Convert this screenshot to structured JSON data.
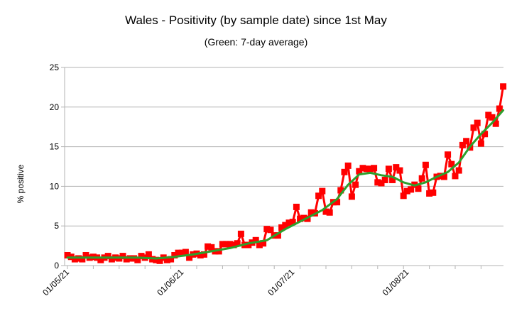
{
  "chart_data": {
    "type": "line",
    "title": "Wales - Positivity (by sample date) since 1st May",
    "subtitle": "(Green: 7-day average)",
    "xlabel": "",
    "ylabel": "% positive",
    "ylim": [
      0,
      25
    ],
    "yticks": [
      0,
      5,
      10,
      15,
      20,
      25
    ],
    "x_start": "2021-05-01",
    "x_end": "2021-08-31",
    "xticks": [
      {
        "label": "01/05/21",
        "date": "2021-05-01"
      },
      {
        "label": "01/06/21",
        "date": "2021-06-01"
      },
      {
        "label": "01/07/21",
        "date": "2021-07-01"
      },
      {
        "label": "01/08/21",
        "date": "2021-08-01"
      }
    ],
    "grid": "horizontal",
    "legend": "none",
    "series": [
      {
        "color": "#ff0000",
        "marker": "square",
        "points": [
          [
            "2021-05-01",
            1.3
          ],
          [
            "2021-05-02",
            1.1
          ],
          [
            "2021-05-03",
            0.8
          ],
          [
            "2021-05-04",
            0.9
          ],
          [
            "2021-05-05",
            0.8
          ],
          [
            "2021-05-06",
            1.3
          ],
          [
            "2021-05-07",
            1.0
          ],
          [
            "2021-05-08",
            1.1
          ],
          [
            "2021-05-09",
            1.0
          ],
          [
            "2021-05-10",
            0.7
          ],
          [
            "2021-05-11",
            1.0
          ],
          [
            "2021-05-12",
            1.2
          ],
          [
            "2021-05-13",
            0.8
          ],
          [
            "2021-05-14",
            1.0
          ],
          [
            "2021-05-15",
            0.9
          ],
          [
            "2021-05-16",
            1.2
          ],
          [
            "2021-05-17",
            0.8
          ],
          [
            "2021-05-18",
            0.9
          ],
          [
            "2021-05-19",
            0.9
          ],
          [
            "2021-05-20",
            0.7
          ],
          [
            "2021-05-21",
            1.2
          ],
          [
            "2021-05-22",
            1.0
          ],
          [
            "2021-05-23",
            1.4
          ],
          [
            "2021-05-24",
            0.8
          ],
          [
            "2021-05-25",
            0.7
          ],
          [
            "2021-05-26",
            0.6
          ],
          [
            "2021-05-27",
            1.0
          ],
          [
            "2021-05-28",
            0.7
          ],
          [
            "2021-05-29",
            0.8
          ],
          [
            "2021-05-30",
            1.3
          ],
          [
            "2021-05-31",
            1.6
          ],
          [
            "2021-06-01",
            1.6
          ],
          [
            "2021-06-02",
            1.7
          ],
          [
            "2021-06-03",
            1.0
          ],
          [
            "2021-06-04",
            1.4
          ],
          [
            "2021-06-05",
            1.5
          ],
          [
            "2021-06-06",
            1.3
          ],
          [
            "2021-06-07",
            1.4
          ],
          [
            "2021-06-08",
            2.4
          ],
          [
            "2021-06-09",
            2.3
          ],
          [
            "2021-06-10",
            1.8
          ],
          [
            "2021-06-11",
            1.8
          ],
          [
            "2021-06-12",
            2.7
          ],
          [
            "2021-06-13",
            2.7
          ],
          [
            "2021-06-14",
            2.7
          ],
          [
            "2021-06-15",
            2.6
          ],
          [
            "2021-06-16",
            2.8
          ],
          [
            "2021-06-17",
            4.0
          ],
          [
            "2021-06-18",
            2.6
          ],
          [
            "2021-06-19",
            2.6
          ],
          [
            "2021-06-20",
            2.9
          ],
          [
            "2021-06-21",
            3.2
          ],
          [
            "2021-06-22",
            2.6
          ],
          [
            "2021-06-23",
            2.8
          ],
          [
            "2021-06-24",
            4.6
          ],
          [
            "2021-06-25",
            4.5
          ],
          [
            "2021-06-26",
            3.8
          ],
          [
            "2021-06-27",
            3.8
          ],
          [
            "2021-06-28",
            4.8
          ],
          [
            "2021-06-29",
            5.1
          ],
          [
            "2021-06-30",
            5.4
          ],
          [
            "2021-07-01",
            5.5
          ],
          [
            "2021-07-02",
            7.4
          ],
          [
            "2021-07-03",
            5.9
          ],
          [
            "2021-07-04",
            6.0
          ],
          [
            "2021-07-05",
            5.9
          ],
          [
            "2021-07-06",
            6.7
          ],
          [
            "2021-07-07",
            6.6
          ],
          [
            "2021-07-08",
            8.8
          ],
          [
            "2021-07-09",
            9.4
          ],
          [
            "2021-07-10",
            6.8
          ],
          [
            "2021-07-11",
            6.7
          ],
          [
            "2021-07-12",
            8.0
          ],
          [
            "2021-07-13",
            8.0
          ],
          [
            "2021-07-14",
            9.5
          ],
          [
            "2021-07-15",
            11.8
          ],
          [
            "2021-07-16",
            12.6
          ],
          [
            "2021-07-17",
            8.7
          ],
          [
            "2021-07-18",
            10.2
          ],
          [
            "2021-07-19",
            11.9
          ],
          [
            "2021-07-20",
            12.3
          ],
          [
            "2021-07-21",
            12.2
          ],
          [
            "2021-07-22",
            12.2
          ],
          [
            "2021-07-23",
            12.3
          ],
          [
            "2021-07-24",
            10.5
          ],
          [
            "2021-07-25",
            10.4
          ],
          [
            "2021-07-26",
            10.8
          ],
          [
            "2021-07-27",
            12.2
          ],
          [
            "2021-07-28",
            10.8
          ],
          [
            "2021-07-29",
            12.4
          ],
          [
            "2021-07-30",
            12.0
          ],
          [
            "2021-07-31",
            8.8
          ],
          [
            "2021-08-01",
            9.4
          ],
          [
            "2021-08-02",
            9.6
          ],
          [
            "2021-08-03",
            10.2
          ],
          [
            "2021-08-04",
            9.7
          ],
          [
            "2021-08-05",
            11.0
          ],
          [
            "2021-08-06",
            12.7
          ],
          [
            "2021-08-07",
            9.1
          ],
          [
            "2021-08-08",
            9.2
          ],
          [
            "2021-08-09",
            11.2
          ],
          [
            "2021-08-10",
            11.3
          ],
          [
            "2021-08-11",
            11.2
          ],
          [
            "2021-08-12",
            14.0
          ],
          [
            "2021-08-13",
            12.8
          ],
          [
            "2021-08-14",
            11.3
          ],
          [
            "2021-08-15",
            12.0
          ],
          [
            "2021-08-16",
            15.2
          ],
          [
            "2021-08-17",
            15.7
          ],
          [
            "2021-08-18",
            14.9
          ],
          [
            "2021-08-19",
            17.4
          ],
          [
            "2021-08-20",
            18.0
          ],
          [
            "2021-08-21",
            15.4
          ],
          [
            "2021-08-22",
            16.6
          ],
          [
            "2021-08-23",
            19.0
          ],
          [
            "2021-08-24",
            18.7
          ],
          [
            "2021-08-25",
            17.9
          ],
          [
            "2021-08-26",
            19.8
          ],
          [
            "2021-08-27",
            22.6
          ]
        ]
      },
      {
        "color": "#2ca02c",
        "marker": "none",
        "points": [
          [
            "2021-05-01",
            1.0
          ],
          [
            "2021-05-05",
            1.0
          ],
          [
            "2021-05-10",
            1.0
          ],
          [
            "2021-05-15",
            1.0
          ],
          [
            "2021-05-20",
            1.0
          ],
          [
            "2021-05-25",
            0.9
          ],
          [
            "2021-05-30",
            1.1
          ],
          [
            "2021-06-04",
            1.4
          ],
          [
            "2021-06-09",
            1.8
          ],
          [
            "2021-06-14",
            2.2
          ],
          [
            "2021-06-19",
            2.8
          ],
          [
            "2021-06-24",
            3.2
          ],
          [
            "2021-06-29",
            4.6
          ],
          [
            "2021-07-04",
            5.8
          ],
          [
            "2021-07-09",
            7.0
          ],
          [
            "2021-07-13",
            8.4
          ],
          [
            "2021-07-16",
            10.2
          ],
          [
            "2021-07-19",
            11.5
          ],
          [
            "2021-07-22",
            11.7
          ],
          [
            "2021-07-25",
            11.4
          ],
          [
            "2021-07-28",
            11.2
          ],
          [
            "2021-07-31",
            10.5
          ],
          [
            "2021-08-03",
            10.1
          ],
          [
            "2021-08-06",
            10.5
          ],
          [
            "2021-08-09",
            11.2
          ],
          [
            "2021-08-12",
            11.8
          ],
          [
            "2021-08-15",
            13.0
          ],
          [
            "2021-08-18",
            15.0
          ],
          [
            "2021-08-21",
            16.6
          ],
          [
            "2021-08-24",
            18.0
          ],
          [
            "2021-08-27",
            19.6
          ]
        ]
      }
    ]
  }
}
